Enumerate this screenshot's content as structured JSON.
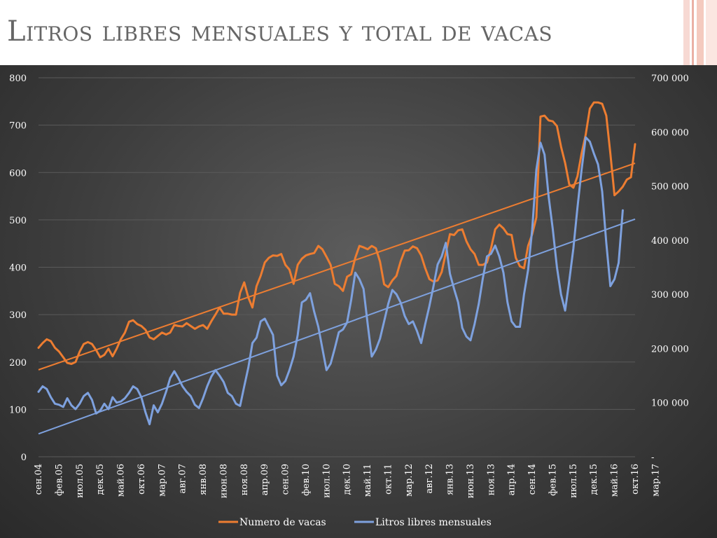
{
  "title": "Litros libres mensuales y total de vacas",
  "colors": {
    "cows": "#ED7D31",
    "liters": "#7EA1DE",
    "grid": "#5a5a5a",
    "text": "#ffffff",
    "title": "#666666"
  },
  "chart_data": {
    "type": "line",
    "title": "Litros libres mensuales y total de vacas",
    "grid": true,
    "legend_position": "bottom",
    "x_tick_labels": [
      "сен.04",
      "фев.05",
      "июл.05",
      "дек.05",
      "май.06",
      "окт.06",
      "мар.07",
      "авг.07",
      "янв.08",
      "июн.08",
      "ноя.08",
      "апр.09",
      "сен.09",
      "фев.10",
      "июл.10",
      "дек.10",
      "май.11",
      "окт.11",
      "мар.12",
      "авг.12",
      "янв.13",
      "июн.13",
      "ноя.13",
      "апр.14",
      "сен.14",
      "фев.15",
      "июл.15",
      "дек.15",
      "май.16",
      "окт.16",
      "мар.17"
    ],
    "y_left_ticks": [
      "0",
      "100",
      "200",
      "300",
      "400",
      "500",
      "600",
      "700",
      "800"
    ],
    "y_left_range": [
      0,
      800
    ],
    "y_right_ticks": [
      "-",
      "100 000",
      "200 000",
      "300 000",
      "400 000",
      "500 000",
      "600 000",
      "700 000"
    ],
    "y_right_range": [
      0,
      700000
    ],
    "series": [
      {
        "name": "Numero de vacas",
        "axis": "left",
        "trendline": true,
        "values": [
          230,
          240,
          248,
          244,
          230,
          222,
          210,
          198,
          196,
          200,
          222,
          238,
          242,
          238,
          225,
          210,
          215,
          228,
          212,
          228,
          248,
          262,
          285,
          288,
          280,
          276,
          268,
          252,
          248,
          255,
          262,
          258,
          262,
          278,
          276,
          275,
          282,
          276,
          270,
          275,
          278,
          270,
          286,
          300,
          315,
          302,
          302,
          300,
          300,
          346,
          368,
          336,
          315,
          360,
          382,
          410,
          420,
          425,
          424,
          428,
          405,
          395,
          365,
          405,
          418,
          425,
          428,
          430,
          445,
          438,
          422,
          405,
          365,
          360,
          350,
          380,
          385,
          420,
          445,
          442,
          438,
          445,
          440,
          412,
          364,
          358,
          372,
          382,
          412,
          435,
          436,
          444,
          440,
          425,
          398,
          375,
          370,
          372,
          390,
          430,
          470,
          468,
          478,
          480,
          455,
          438,
          428,
          405,
          405,
          410,
          440,
          480,
          490,
          482,
          470,
          468,
          420,
          402,
          398,
          445,
          470,
          505,
          718,
          720,
          710,
          708,
          698,
          655,
          620,
          575,
          568,
          592,
          640,
          680,
          735,
          748,
          748,
          745,
          720,
          640,
          552,
          560,
          570,
          585,
          590,
          660
        ]
      },
      {
        "name": "Litros libres mensuales",
        "axis": "right",
        "trendline": true,
        "values": [
          120000,
          130000,
          125000,
          110000,
          98000,
          96000,
          92000,
          108000,
          95000,
          88000,
          98000,
          112000,
          118000,
          105000,
          80000,
          85000,
          98000,
          88000,
          110000,
          100000,
          102000,
          108000,
          118000,
          130000,
          125000,
          110000,
          82000,
          60000,
          95000,
          82000,
          98000,
          120000,
          145000,
          158000,
          145000,
          130000,
          120000,
          112000,
          96000,
          90000,
          108000,
          130000,
          148000,
          160000,
          150000,
          138000,
          118000,
          112000,
          98000,
          94000,
          130000,
          165000,
          210000,
          220000,
          250000,
          255000,
          240000,
          225000,
          150000,
          132000,
          140000,
          160000,
          185000,
          225000,
          285000,
          290000,
          302000,
          268000,
          240000,
          200000,
          160000,
          172000,
          200000,
          230000,
          235000,
          248000,
          290000,
          340000,
          328000,
          310000,
          245000,
          185000,
          198000,
          218000,
          250000,
          282000,
          308000,
          300000,
          285000,
          260000,
          245000,
          250000,
          232000,
          210000,
          245000,
          278000,
          315000,
          355000,
          370000,
          395000,
          338000,
          310000,
          285000,
          238000,
          222000,
          215000,
          245000,
          282000,
          330000,
          370000,
          375000,
          390000,
          370000,
          340000,
          285000,
          250000,
          240000,
          240000,
          300000,
          345000,
          420000,
          530000,
          580000,
          558000,
          480000,
          420000,
          350000,
          300000,
          270000,
          325000,
          385000,
          460000,
          530000,
          590000,
          582000,
          560000,
          540000,
          490000,
          395000,
          315000,
          328000,
          358000,
          455000
        ]
      }
    ]
  },
  "legend": [
    {
      "label": "Numero de vacas"
    },
    {
      "label": "Litros libres mensuales"
    }
  ]
}
